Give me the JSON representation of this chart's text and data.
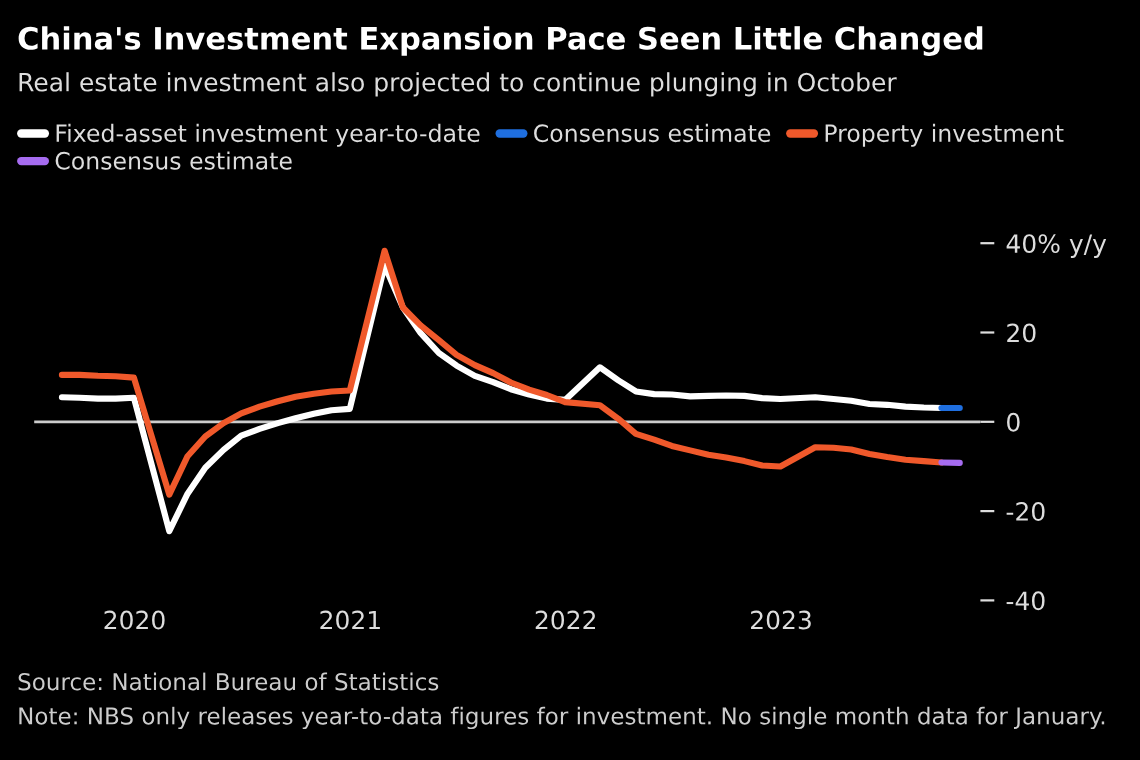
{
  "chart_data": {
    "type": "line",
    "title": "China's Investment Expansion Pace Seen Little Changed",
    "subtitle": "Real estate investment also projected to continue plunging in October",
    "x": [
      "2019-08-31",
      "2019-09-30",
      "2019-10-31",
      "2019-11-30",
      "2019-12-31",
      "2020-02-29",
      "2020-03-31",
      "2020-04-30",
      "2020-05-31",
      "2020-06-30",
      "2020-07-31",
      "2020-08-31",
      "2020-09-30",
      "2020-10-31",
      "2020-11-30",
      "2020-12-31",
      "2021-02-28",
      "2021-03-31",
      "2021-04-30",
      "2021-05-31",
      "2021-06-30",
      "2021-07-31",
      "2021-08-31",
      "2021-09-30",
      "2021-10-31",
      "2021-11-30",
      "2021-12-31",
      "2022-02-28",
      "2022-03-31",
      "2022-04-30",
      "2022-05-31",
      "2022-06-30",
      "2022-07-31",
      "2022-08-31",
      "2022-09-30",
      "2022-10-31",
      "2022-11-30",
      "2022-12-31",
      "2023-02-28",
      "2023-03-31",
      "2023-04-30",
      "2023-05-31",
      "2023-06-30",
      "2023-07-31",
      "2023-08-31",
      "2023-09-30"
    ],
    "series": [
      {
        "name": "Fixed-asset investment year-to-date",
        "color": "#ffffff",
        "values": [
          5.5,
          5.4,
          5.2,
          5.2,
          5.4,
          -24.5,
          -16.1,
          -10.3,
          -6.3,
          -3.1,
          -1.6,
          -0.3,
          0.8,
          1.8,
          2.6,
          2.9,
          35.0,
          25.6,
          19.9,
          15.4,
          12.6,
          10.3,
          8.9,
          7.3,
          6.1,
          5.2,
          4.9,
          12.2,
          9.3,
          6.8,
          6.2,
          6.1,
          5.7,
          5.8,
          5.9,
          5.8,
          5.3,
          5.1,
          5.5,
          5.1,
          4.7,
          4.0,
          3.8,
          3.4,
          3.2,
          3.1
        ]
      },
      {
        "name": "Consensus estimate",
        "color": "#1f6fe0",
        "x": [
          "2023-09-30",
          "2023-10-31"
        ],
        "values": [
          3.1,
          3.1
        ]
      },
      {
        "name": "Property investment",
        "color": "#f0592b",
        "values": [
          10.5,
          10.5,
          10.3,
          10.2,
          9.9,
          -16.3,
          -7.7,
          -3.3,
          -0.3,
          1.9,
          3.4,
          4.6,
          5.6,
          6.3,
          6.8,
          7.0,
          38.3,
          25.6,
          21.6,
          18.3,
          15.0,
          12.7,
          10.9,
          8.8,
          7.2,
          6.0,
          4.4,
          3.7,
          0.7,
          -2.7,
          -4.0,
          -5.4,
          -6.4,
          -7.4,
          -8.0,
          -8.8,
          -9.8,
          -10.0,
          -5.7,
          -5.8,
          -6.2,
          -7.2,
          -7.9,
          -8.5,
          -8.8,
          -9.1
        ]
      },
      {
        "name": "Consensus estimate",
        "color": "#a66cf0",
        "x": [
          "2023-09-30",
          "2023-10-31"
        ],
        "values": [
          -9.1,
          -9.2
        ]
      }
    ],
    "xlim": [
      "2019-07-15",
      "2023-12-05"
    ],
    "xticks": [
      {
        "value": "2020-01-01",
        "label": "2020"
      },
      {
        "value": "2021-01-01",
        "label": "2021"
      },
      {
        "value": "2022-01-01",
        "label": "2022"
      },
      {
        "value": "2023-01-01",
        "label": "2023"
      }
    ],
    "ylim": [
      -40,
      40
    ],
    "yticks": [
      {
        "value": 40,
        "label": "40% y/y"
      },
      20,
      0,
      -20,
      -40
    ],
    "ref_lines": [
      {
        "axis": "y",
        "value": 0,
        "color": "#cccccc"
      }
    ],
    "grid": false,
    "legend": "top left",
    "line_style": "solid",
    "marker": "none",
    "annotations": [
      "Source: National Bureau of Statistics",
      "Note: NBS only releases year-to-data figures for investment. No single month data for January."
    ]
  }
}
